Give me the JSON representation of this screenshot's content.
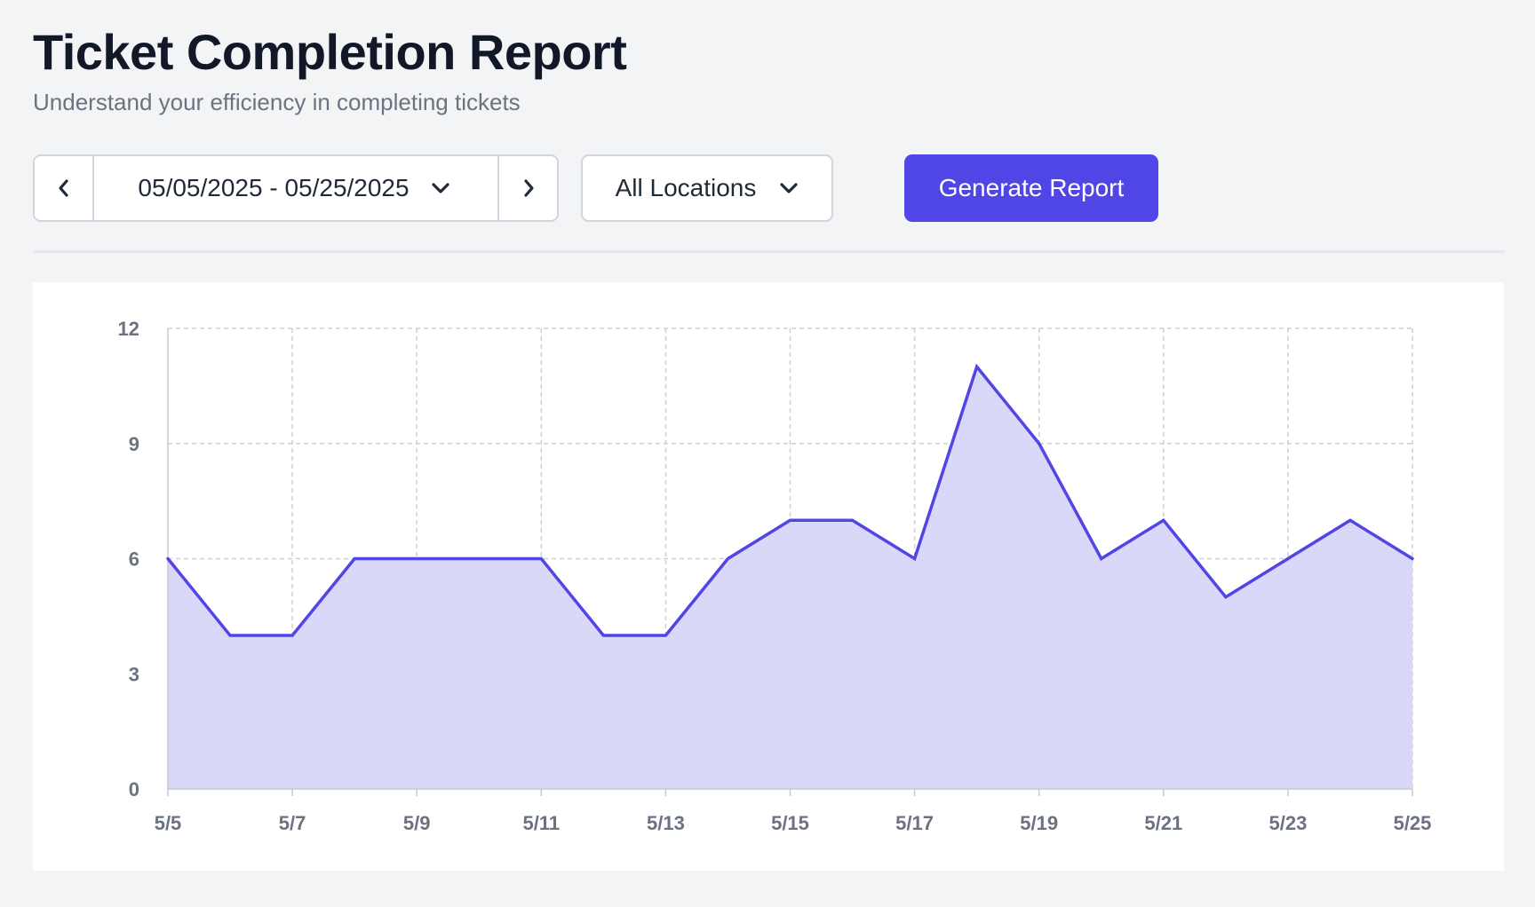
{
  "header": {
    "title": "Ticket Completion Report",
    "subtitle": "Understand your efficiency in completing tickets"
  },
  "toolbar": {
    "date_range": "05/05/2025 - 05/25/2025",
    "location": "All Locations",
    "generate_label": "Generate Report",
    "prev_icon": "chevron-left-icon",
    "next_icon": "chevron-right-icon",
    "dropdown_icon": "chevron-down-icon"
  },
  "colors": {
    "accent": "#4f46e5",
    "area_fill": "#dad8f8",
    "grid": "#cfcfd4",
    "tick_text": "#6b7280"
  },
  "chart_data": {
    "type": "area",
    "title": "",
    "xlabel": "",
    "ylabel": "",
    "x": [
      "5/5",
      "5/6",
      "5/7",
      "5/8",
      "5/9",
      "5/10",
      "5/11",
      "5/12",
      "5/13",
      "5/14",
      "5/15",
      "5/16",
      "5/17",
      "5/18",
      "5/19",
      "5/20",
      "5/21",
      "5/22",
      "5/23",
      "5/24",
      "5/25"
    ],
    "x_tick_labels": [
      "5/5",
      "5/7",
      "5/9",
      "5/11",
      "5/13",
      "5/15",
      "5/17",
      "5/19",
      "5/21",
      "5/23",
      "5/25"
    ],
    "values": [
      6,
      4,
      4,
      6,
      6,
      6,
      6,
      4,
      4,
      6,
      7,
      7,
      6,
      11,
      9,
      6,
      7,
      5,
      6,
      7,
      6
    ],
    "y_ticks": [
      "0",
      "3",
      "6",
      "9",
      "12"
    ],
    "ylim": [
      0,
      12
    ],
    "grid": true,
    "legend": "none"
  }
}
